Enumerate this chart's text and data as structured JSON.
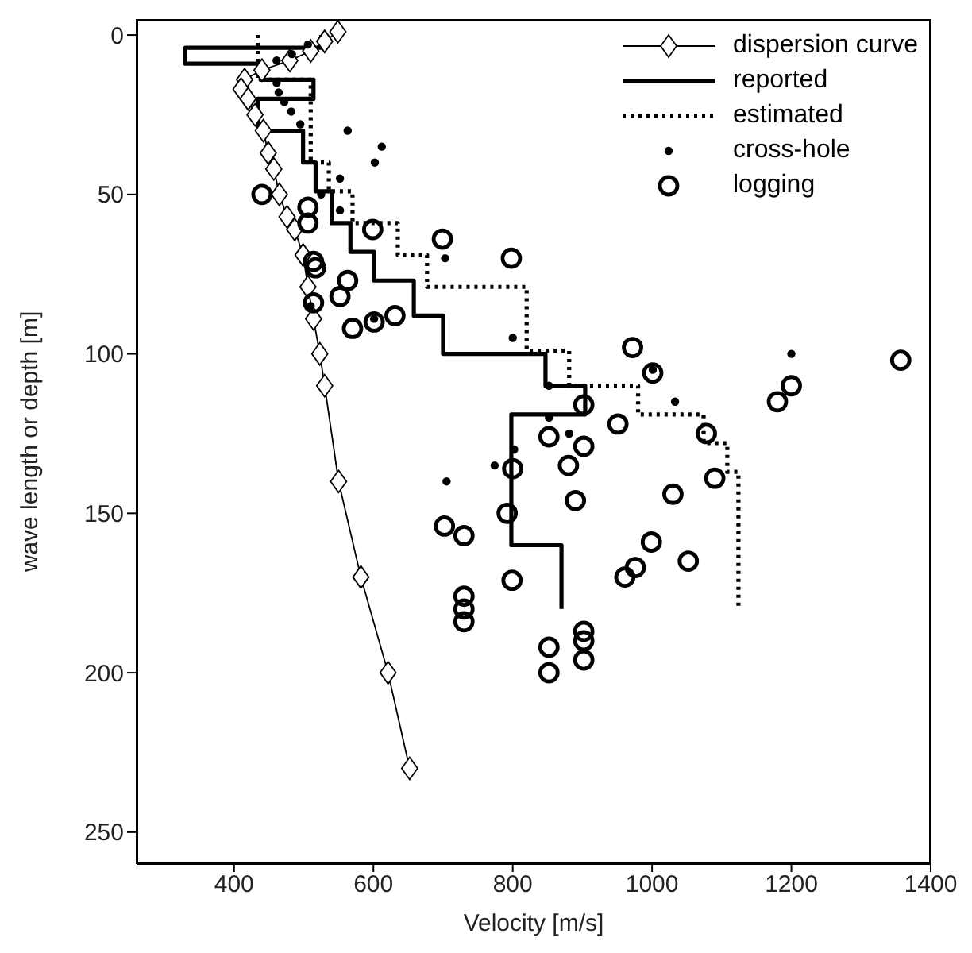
{
  "chart_data": {
    "type": "line",
    "xlabel": "Velocity [m/s]",
    "ylabel": "wave length or depth [m]",
    "xlim": [
      260,
      1400
    ],
    "xticks": [
      400,
      600,
      800,
      1000,
      1200,
      1400
    ],
    "ylim": [
      260,
      -5
    ],
    "yticks": [
      0,
      50,
      100,
      150,
      200,
      250
    ],
    "legend": "top right",
    "series": [
      {
        "name": "dispersion curve",
        "color": "#000000",
        "marker": "diamond",
        "line_style": "solid",
        "x": [
          549,
          530,
          510,
          480,
          440,
          415,
          410,
          420,
          430,
          442,
          449,
          457,
          465,
          476,
          487,
          499,
          506,
          514,
          523,
          530,
          550,
          582,
          621,
          652
        ],
        "values": [
          -1,
          2,
          5,
          8,
          11,
          14,
          17,
          20,
          25,
          30,
          37,
          42,
          50,
          57,
          61,
          69,
          79,
          89,
          100,
          110,
          140,
          170,
          200,
          230
        ]
      },
      {
        "name": "reported",
        "color": "#000000",
        "marker": "none",
        "line_style": "solid",
        "x": [
          525,
          525,
          330,
          330,
          438,
          438,
          514,
          514,
          434,
          434,
          499,
          499,
          517,
          517,
          540,
          540,
          567,
          567,
          601,
          601,
          658,
          658,
          700,
          700,
          847,
          847,
          904,
          904,
          798,
          798,
          870,
          870
        ],
        "values": [
          0,
          4,
          4,
          9,
          9,
          14,
          14,
          20,
          20,
          30,
          30,
          40,
          40,
          49,
          49,
          59,
          59,
          68,
          68,
          77,
          77,
          88,
          88,
          100,
          100,
          110,
          110,
          119,
          119,
          160,
          160,
          180
        ]
      },
      {
        "name": "estimated",
        "color": "#000000",
        "marker": "none",
        "line_style": "dotted",
        "x": [
          434,
          434,
          510,
          510,
          536,
          536,
          570,
          570,
          635,
          635,
          677,
          677,
          820,
          820,
          881,
          881,
          980,
          980,
          1074,
          1074,
          1108,
          1108,
          1124,
          1124
        ],
        "values": [
          0,
          14,
          14,
          40,
          40,
          49,
          49,
          59,
          59,
          69,
          69,
          79,
          79,
          99,
          99,
          110,
          110,
          119,
          119,
          128,
          128,
          137,
          137,
          179
        ]
      },
      {
        "name": "cross-hole",
        "type": "scatter",
        "color": "#000000",
        "marker": "circle",
        "x": [
          461,
          483,
          506,
          461,
          464,
          472,
          482,
          495,
          563,
          612,
          602,
          552,
          525,
          552,
          703,
          510,
          601,
          800,
          852,
          852,
          881,
          802,
          774,
          705,
          1001,
          1033,
          1200
        ],
        "values": [
          8,
          6,
          3,
          15,
          18,
          21,
          24,
          28,
          30,
          35,
          40,
          45,
          50,
          55,
          70,
          85,
          89,
          95,
          110,
          120,
          125,
          130,
          135,
          140,
          105,
          115,
          100
        ]
      },
      {
        "name": "logging",
        "type": "scatter",
        "color": "#000000",
        "marker": "circle",
        "x": [
          440,
          506,
          506,
          599,
          699,
          514,
          517,
          563,
          552,
          514,
          570,
          601,
          631,
          798,
          800,
          792,
          702,
          730,
          799,
          730,
          730,
          730,
          972,
          1001,
          902,
          951,
          852,
          902,
          880,
          1078,
          1090,
          1030,
          890,
          999,
          1052,
          976,
          961,
          852,
          852,
          902,
          902,
          902,
          1180,
          1200,
          1357
        ],
        "values": [
          50,
          54,
          59,
          61,
          64,
          71,
          73,
          77,
          82,
          84,
          92,
          90,
          88,
          70,
          136,
          150,
          154,
          157,
          171,
          176,
          180,
          184,
          98,
          106,
          116,
          122,
          126,
          129,
          135,
          125,
          139,
          144,
          146,
          159,
          165,
          167,
          170,
          192,
          200,
          187,
          190,
          196,
          115,
          110,
          102
        ]
      }
    ]
  }
}
